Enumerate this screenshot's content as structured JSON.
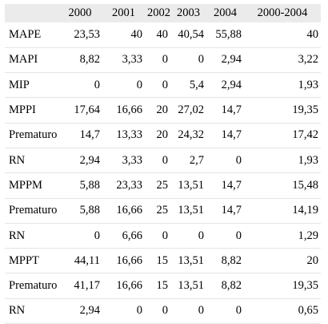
{
  "table": {
    "columns": [
      "",
      "2000",
      "2001",
      "2002",
      "2003",
      "2004",
      "2000-2004"
    ],
    "rows": [
      {
        "label": "MAPE",
        "values": [
          "23,53",
          "40",
          "40",
          "40,54",
          "55,88",
          "40"
        ]
      },
      {
        "label": "MAPI",
        "values": [
          "8,82",
          "3,33",
          "0",
          "0",
          "2,94",
          "3,22"
        ]
      },
      {
        "label": "MIP",
        "values": [
          "0",
          "0",
          "0",
          "5,4",
          "2,94",
          "1,93"
        ]
      },
      {
        "label": "MPPI",
        "values": [
          "17,64",
          "16,66",
          "20",
          "27,02",
          "14,7",
          "19,35"
        ]
      },
      {
        "label": "Prematuro",
        "values": [
          "14,7",
          "13,33",
          "20",
          "24,32",
          "14,7",
          "17,42"
        ]
      },
      {
        "label": "RN",
        "values": [
          "2,94",
          "3,33",
          "0",
          "2,7",
          "0",
          "1,93"
        ]
      },
      {
        "label": "MPPM",
        "values": [
          "5,88",
          "23,33",
          "25",
          "13,51",
          "14,7",
          "15,48"
        ]
      },
      {
        "label": "Prematuro",
        "values": [
          "5,88",
          "16,66",
          "25",
          "13,51",
          "14,7",
          "14,19"
        ]
      },
      {
        "label": "RN",
        "values": [
          "0",
          "6,66",
          "0",
          "0",
          "0",
          "1,29"
        ]
      },
      {
        "label": "MPPT",
        "values": [
          "44,11",
          "16,66",
          "15",
          "13,51",
          "8,82",
          "20"
        ]
      },
      {
        "label": "Prematuro",
        "values": [
          "41,17",
          "16,66",
          "15",
          "13,51",
          "8,82",
          "19,35"
        ]
      },
      {
        "label": "RN",
        "values": [
          "2,94",
          "0",
          "0",
          "0",
          "0",
          "0,65"
        ]
      }
    ]
  }
}
